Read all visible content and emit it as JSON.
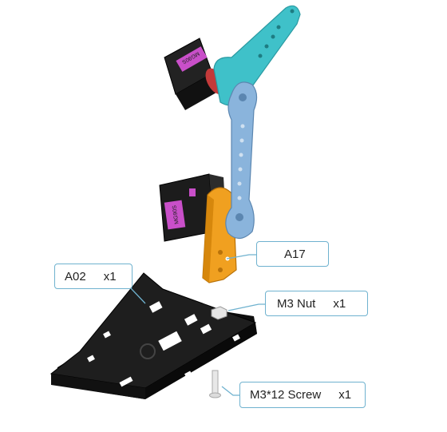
{
  "colors": {
    "base_plate": "#1b1b1b",
    "servo_body": "#1c1c1c",
    "servo_label": "#c94fc9",
    "teal_arm": "#3fc1c9",
    "blue_link": "#8ab4dc",
    "orange_bracket": "#f0a020",
    "red_horn": "#c43a3a",
    "callout_border": "#6fb2cf"
  },
  "callouts": {
    "a17": {
      "label": "A17"
    },
    "a02": {
      "label": "A02",
      "qty": "x1"
    },
    "m3_nut": {
      "label": "M3 Nut",
      "qty": "x1"
    },
    "m3_screw": {
      "label": "M3*12 Screw",
      "qty": "x1"
    }
  },
  "servo_text": "MG90S"
}
